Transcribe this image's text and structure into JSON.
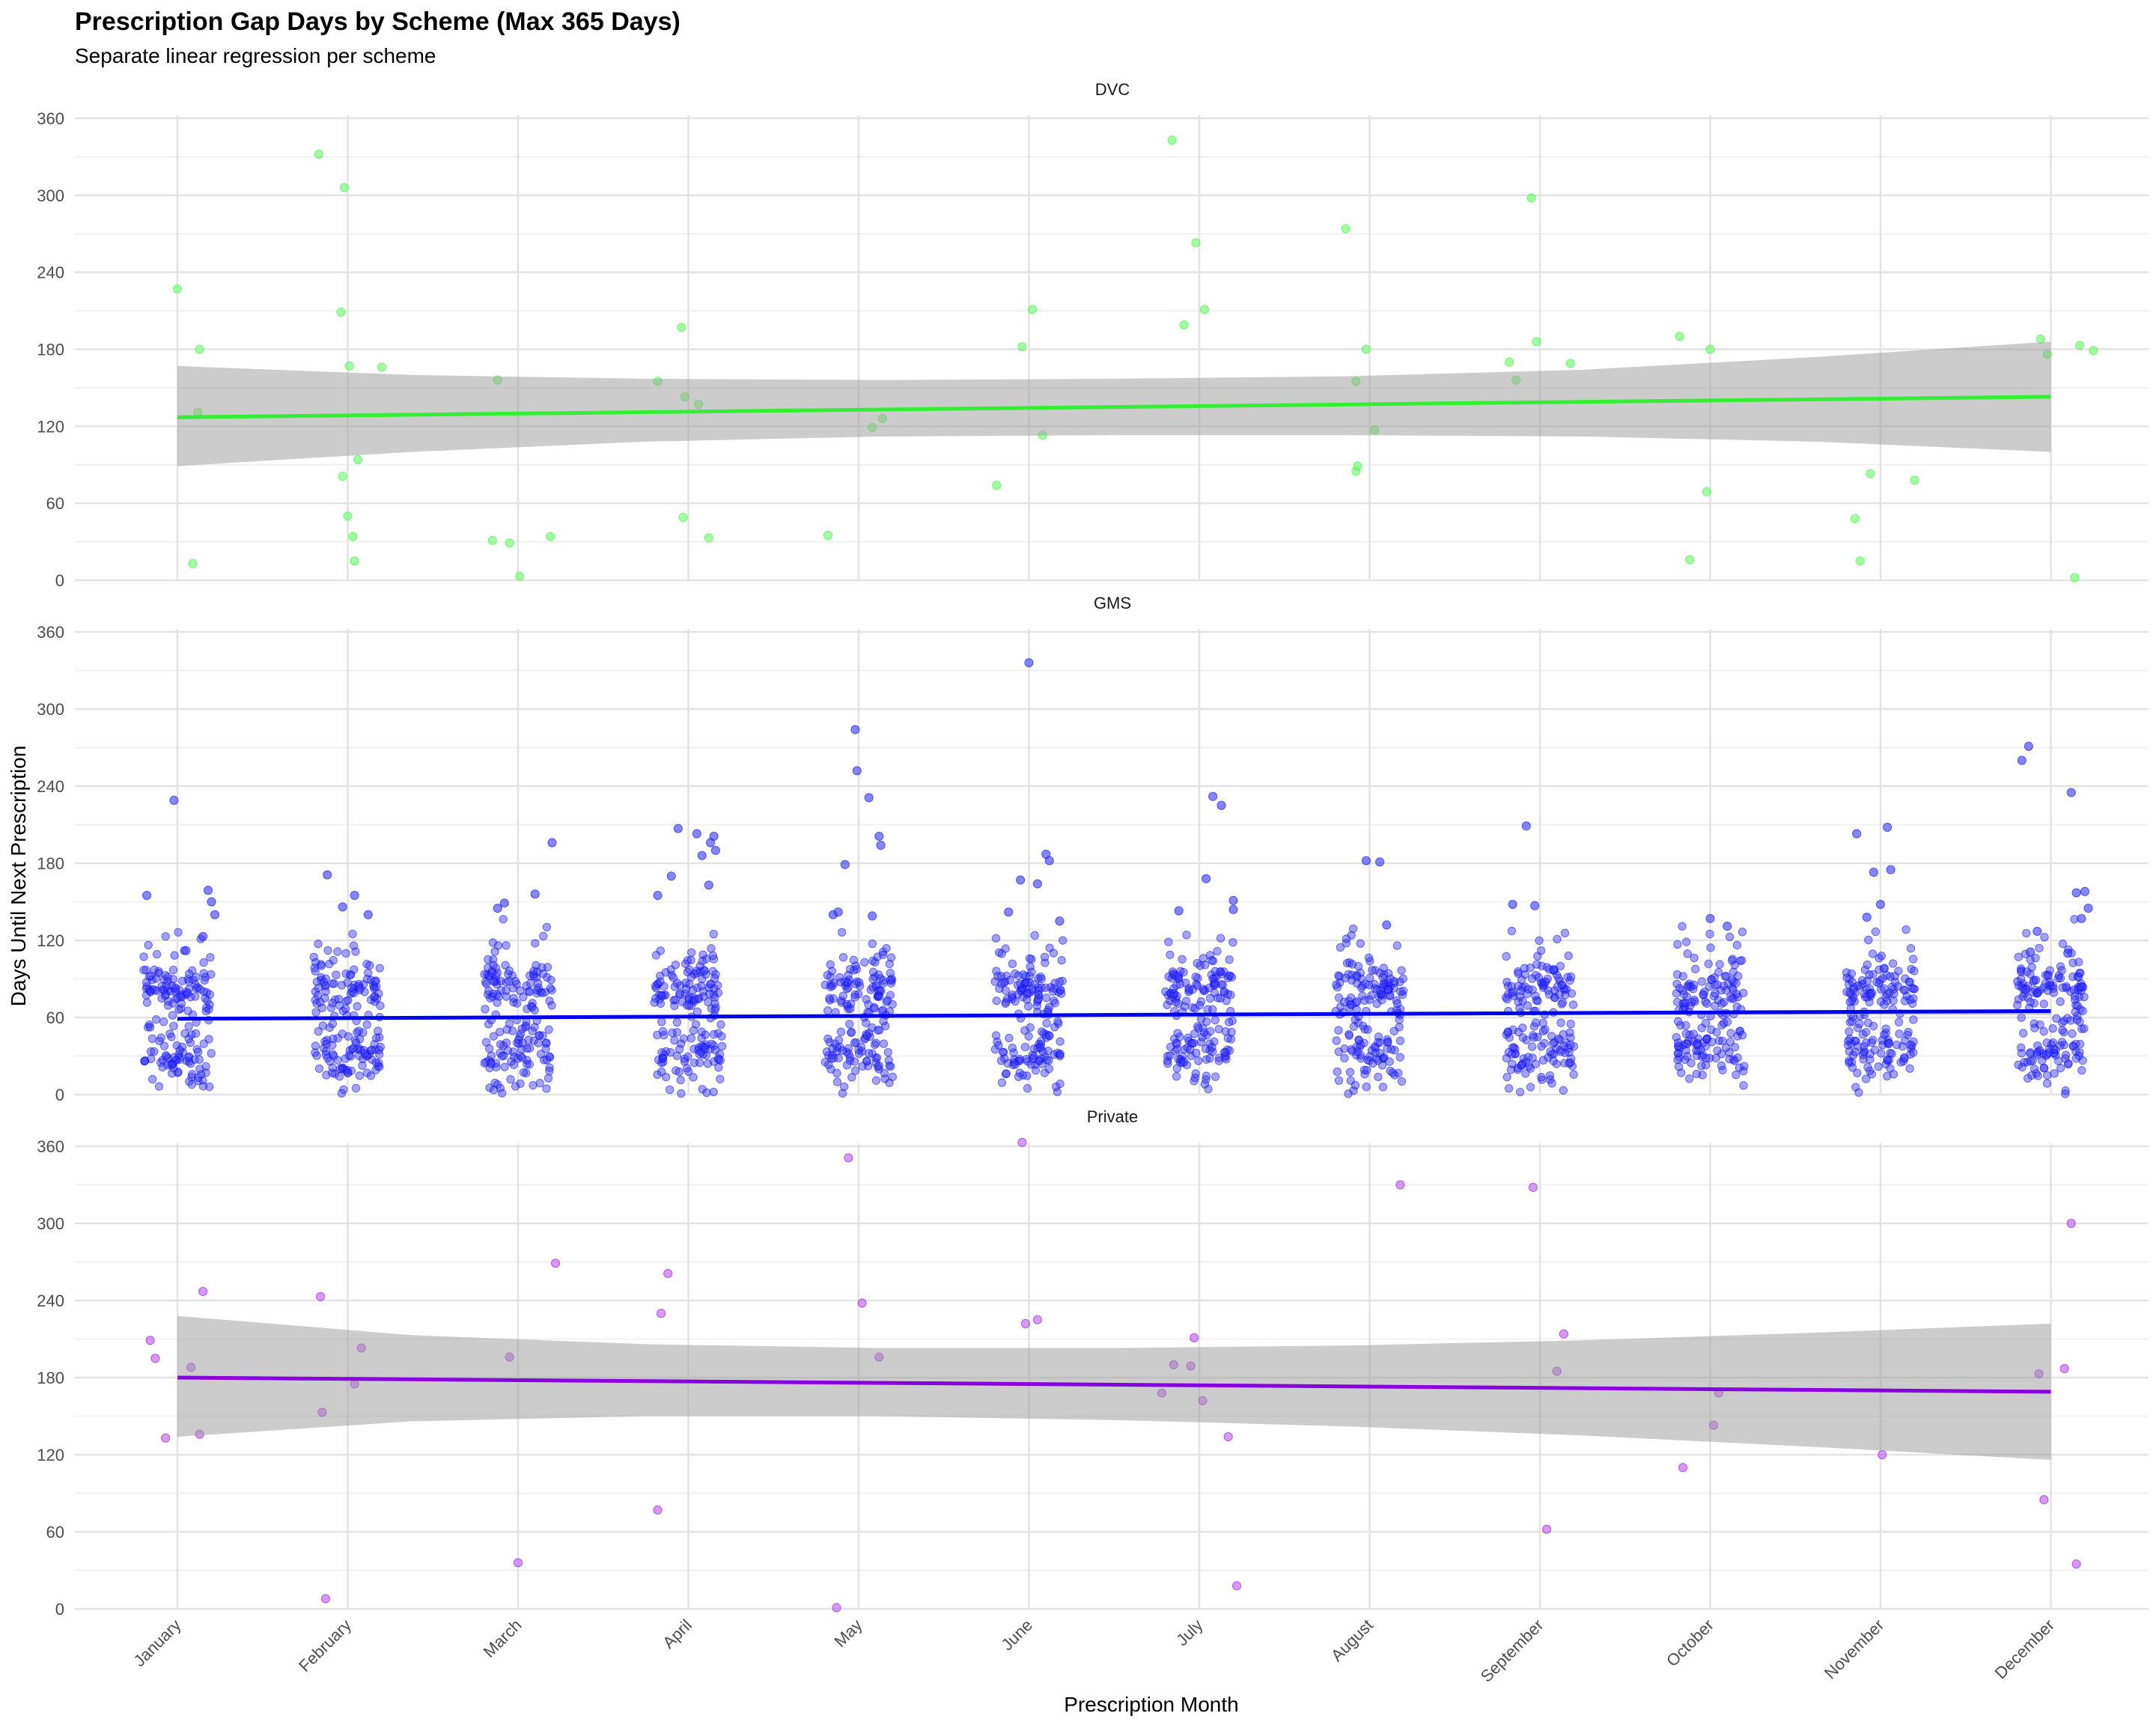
{
  "chart_data": {
    "type": "scatter",
    "title": "Prescription Gap Days by Scheme (Max 365 Days)",
    "subtitle": "Separate linear regression per scheme",
    "xlabel": "Prescription Month",
    "ylabel": "Days Until Next Prescription",
    "categories": [
      "January",
      "February",
      "March",
      "April",
      "May",
      "June",
      "July",
      "August",
      "September",
      "October",
      "November",
      "December"
    ],
    "yticks": [
      0,
      60,
      120,
      180,
      240,
      300,
      360
    ],
    "ylim": [
      0,
      365
    ],
    "grid": true,
    "legend": "none",
    "facets": [
      {
        "label": "DVC",
        "color": "#33ee33",
        "point_color": "#66ff66",
        "fit": {
          "start": 127,
          "end": 143
        },
        "ci_lower": [
          89,
          100,
          108,
          112,
          113,
          113,
          112,
          108,
          100
        ],
        "ci_upper": [
          167,
          160,
          157,
          156,
          157,
          159,
          164,
          174,
          186
        ],
        "points": [
          [
            1.0,
            227
          ],
          [
            1.13,
            180
          ],
          [
            1.12,
            131
          ],
          [
            1.09,
            13
          ],
          [
            1.83,
            332
          ],
          [
            1.98,
            306
          ],
          [
            1.96,
            209
          ],
          [
            2.01,
            167
          ],
          [
            2.2,
            166
          ],
          [
            2.06,
            94
          ],
          [
            1.97,
            81
          ],
          [
            2.0,
            50
          ],
          [
            2.03,
            34
          ],
          [
            2.04,
            15
          ],
          [
            2.85,
            31
          ],
          [
            2.88,
            156
          ],
          [
            2.95,
            29
          ],
          [
            3.01,
            3
          ],
          [
            3.19,
            34
          ],
          [
            3.82,
            155
          ],
          [
            3.96,
            197
          ],
          [
            3.98,
            143
          ],
          [
            4.06,
            137
          ],
          [
            3.97,
            49
          ],
          [
            4.12,
            33
          ],
          [
            4.82,
            35
          ],
          [
            5.08,
            119
          ],
          [
            5.14,
            126
          ],
          [
            5.96,
            182
          ],
          [
            6.02,
            211
          ],
          [
            6.08,
            113
          ],
          [
            5.81,
            74
          ],
          [
            6.84,
            343
          ],
          [
            6.98,
            263
          ],
          [
            6.91,
            199
          ],
          [
            7.03,
            211
          ],
          [
            7.86,
            274
          ],
          [
            7.92,
            155
          ],
          [
            7.98,
            180
          ],
          [
            8.03,
            117
          ],
          [
            7.92,
            85
          ],
          [
            7.93,
            89
          ],
          [
            8.95,
            298
          ],
          [
            8.82,
            170
          ],
          [
            8.86,
            156
          ],
          [
            8.98,
            186
          ],
          [
            9.18,
            169
          ],
          [
            9.82,
            190
          ],
          [
            10.0,
            180
          ],
          [
            9.98,
            69
          ],
          [
            9.88,
            16
          ],
          [
            10.85,
            48
          ],
          [
            10.88,
            15
          ],
          [
            10.94,
            83
          ],
          [
            11.2,
            78
          ],
          [
            11.94,
            188
          ],
          [
            11.98,
            176
          ],
          [
            12.17,
            183
          ],
          [
            12.25,
            179
          ],
          [
            12.14,
            2
          ]
        ]
      },
      {
        "label": "GMS",
        "color": "#0000ee",
        "point_color": "#3333ff",
        "fit": {
          "start": 59,
          "end": 65
        },
        "ci_lower": [
          58,
          59,
          60,
          61,
          61,
          62,
          62,
          62,
          62
        ],
        "ci_upper": [
          60,
          61,
          62,
          62,
          63,
          64,
          64,
          65,
          66
        ],
        "points": [
          [
            0.98,
            229
          ],
          [
            0.82,
            155
          ],
          [
            1.18,
            159
          ],
          [
            1.2,
            150
          ],
          [
            1.22,
            140
          ],
          [
            1.15,
            123
          ],
          [
            1.05,
            112
          ],
          [
            1.88,
            171
          ],
          [
            2.04,
            155
          ],
          [
            1.97,
            146
          ],
          [
            2.12,
            140
          ],
          [
            2.92,
            149
          ],
          [
            2.88,
            145
          ],
          [
            3.1,
            156
          ],
          [
            3.2,
            196
          ],
          [
            3.94,
            207
          ],
          [
            4.05,
            203
          ],
          [
            4.15,
            201
          ],
          [
            4.13,
            196
          ],
          [
            4.16,
            190
          ],
          [
            4.08,
            186
          ],
          [
            3.9,
            170
          ],
          [
            3.82,
            155
          ],
          [
            4.12,
            163
          ],
          [
            4.98,
            284
          ],
          [
            4.99,
            252
          ],
          [
            5.06,
            231
          ],
          [
            5.12,
            201
          ],
          [
            5.13,
            194
          ],
          [
            4.92,
            179
          ],
          [
            4.85,
            140
          ],
          [
            4.88,
            142
          ],
          [
            5.08,
            139
          ],
          [
            6.0,
            336
          ],
          [
            6.1,
            187
          ],
          [
            6.12,
            182
          ],
          [
            6.05,
            164
          ],
          [
            5.95,
            167
          ],
          [
            6.18,
            135
          ],
          [
            5.88,
            142
          ],
          [
            7.08,
            232
          ],
          [
            7.13,
            225
          ],
          [
            7.04,
            168
          ],
          [
            7.2,
            151
          ],
          [
            7.2,
            144
          ],
          [
            6.88,
            143
          ],
          [
            7.98,
            182
          ],
          [
            8.06,
            181
          ],
          [
            8.1,
            132
          ],
          [
            8.92,
            209
          ],
          [
            8.84,
            148
          ],
          [
            8.97,
            147
          ],
          [
            10.0,
            137
          ],
          [
            10.1,
            131
          ],
          [
            10.86,
            203
          ],
          [
            11.04,
            208
          ],
          [
            11.06,
            175
          ],
          [
            10.96,
            173
          ],
          [
            11.0,
            148
          ],
          [
            10.92,
            138
          ],
          [
            11.87,
            271
          ],
          [
            11.83,
            260
          ],
          [
            12.12,
            235
          ],
          [
            12.15,
            157
          ],
          [
            12.2,
            158
          ],
          [
            12.22,
            145
          ],
          [
            12.18,
            137
          ],
          [
            11.92,
            127
          ],
          [
            11.88,
            111
          ],
          [
            12.1,
            110
          ]
        ]
      },
      {
        "label": "Private",
        "color": "#8800dd",
        "point_color": "#bb55ee",
        "fit": {
          "start": 180,
          "end": 169
        },
        "ci_lower": [
          134,
          146,
          150,
          150,
          147,
          142,
          135,
          126,
          116
        ],
        "ci_upper": [
          228,
          213,
          206,
          203,
          203,
          205,
          209,
          215,
          222
        ],
        "points": [
          [
            0.84,
            209
          ],
          [
            0.87,
            195
          ],
          [
            0.93,
            133
          ],
          [
            1.08,
            188
          ],
          [
            1.13,
            136
          ],
          [
            1.15,
            247
          ],
          [
            1.87,
            8
          ],
          [
            1.85,
            153
          ],
          [
            1.84,
            243
          ],
          [
            2.04,
            175
          ],
          [
            2.08,
            203
          ],
          [
            2.95,
            196
          ],
          [
            3.0,
            36
          ],
          [
            3.22,
            269
          ],
          [
            3.82,
            77
          ],
          [
            3.84,
            230
          ],
          [
            3.88,
            261
          ],
          [
            4.87,
            1
          ],
          [
            4.94,
            351
          ],
          [
            5.02,
            238
          ],
          [
            5.12,
            196
          ],
          [
            5.96,
            363
          ],
          [
            5.98,
            222
          ],
          [
            6.05,
            225
          ],
          [
            6.78,
            168
          ],
          [
            6.85,
            190
          ],
          [
            6.97,
            211
          ],
          [
            6.95,
            189
          ],
          [
            7.02,
            162
          ],
          [
            7.17,
            134
          ],
          [
            7.22,
            18
          ],
          [
            8.18,
            330
          ],
          [
            8.96,
            328
          ],
          [
            9.04,
            62
          ],
          [
            9.1,
            185
          ],
          [
            9.14,
            214
          ],
          [
            9.84,
            110
          ],
          [
            10.02,
            143
          ],
          [
            10.05,
            168
          ],
          [
            11.01,
            120
          ],
          [
            11.93,
            183
          ],
          [
            11.96,
            85
          ],
          [
            12.08,
            187
          ],
          [
            12.12,
            300
          ],
          [
            12.15,
            35
          ]
        ]
      }
    ],
    "jitter_clusters": {
      "GMS": [
        {
          "center": 30,
          "spread": 12,
          "count": 55
        },
        {
          "center": 83,
          "spread": 9,
          "count": 60
        },
        {
          "center": 55,
          "spread": 28,
          "count": 45
        },
        {
          "center": 105,
          "spread": 12,
          "count": 12
        }
      ]
    }
  }
}
